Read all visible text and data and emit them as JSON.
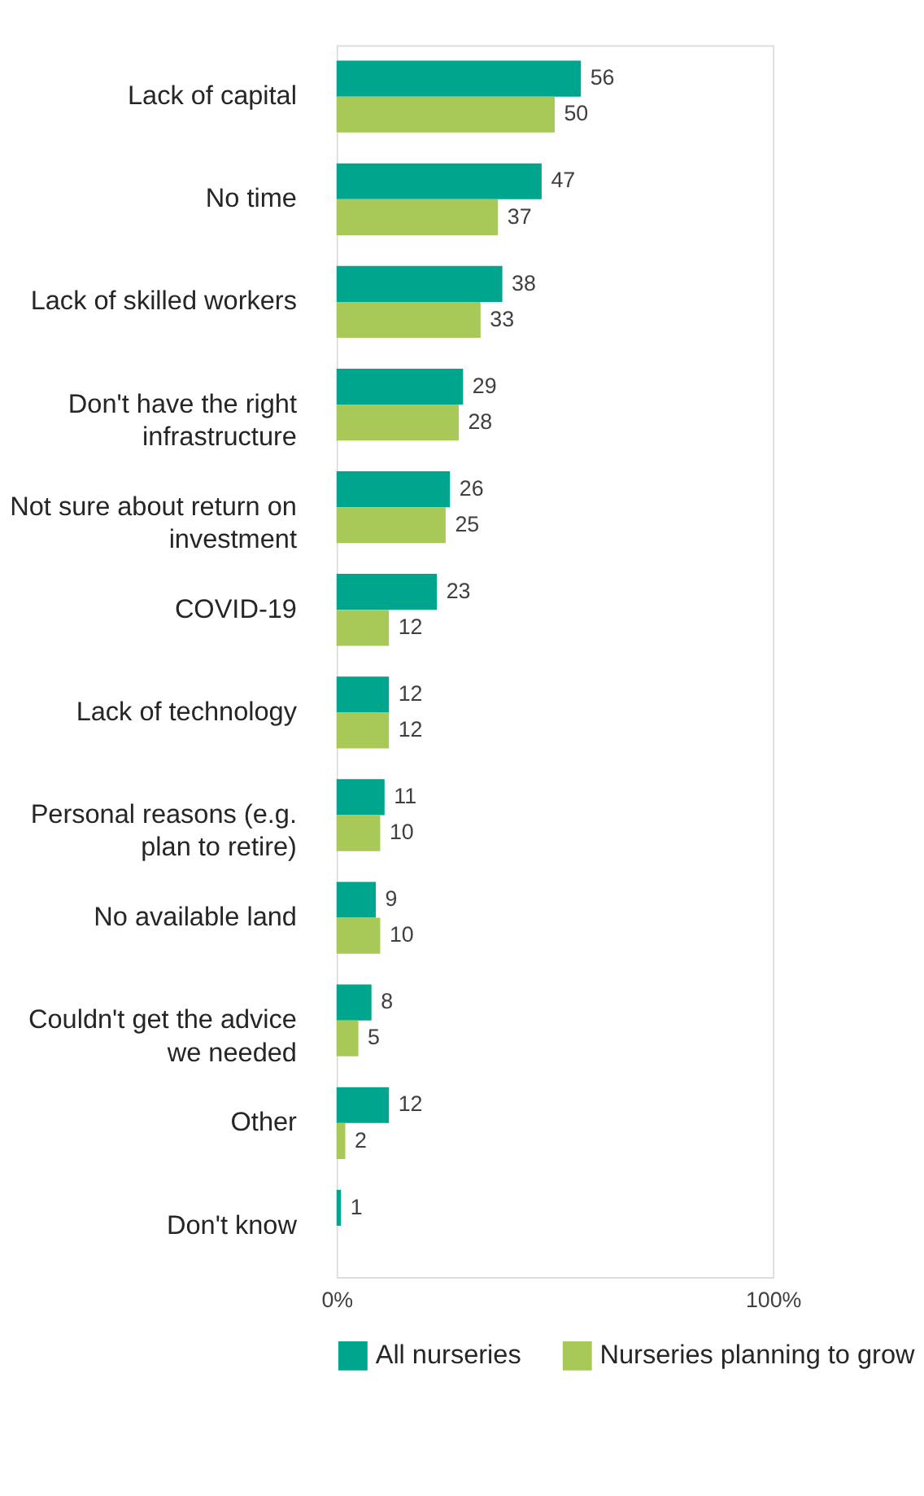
{
  "chart_data": {
    "type": "bar",
    "orientation": "horizontal",
    "categories": [
      "Lack of capital",
      "No time",
      "Lack of skilled workers",
      "Don't have the right infrastructure",
      "Not sure about return on investment",
      "COVID-19",
      "Lack of technology",
      "Personal reasons (e.g. plan to retire)",
      "No available land",
      "Couldn't get the advice we needed",
      "Other",
      "Don't know"
    ],
    "series": [
      {
        "name": "All nurseries",
        "color": "#00a58e",
        "values": [
          56,
          47,
          38,
          29,
          26,
          23,
          12,
          11,
          9,
          8,
          12,
          1
        ]
      },
      {
        "name": "Nurseries planning to grow",
        "color": "#a8c957",
        "values": [
          50,
          37,
          33,
          28,
          25,
          12,
          12,
          10,
          10,
          5,
          2,
          null
        ]
      }
    ],
    "xlim": [
      0,
      100
    ],
    "xticks": [
      {
        "value": 0,
        "label": "0%"
      },
      {
        "value": 100,
        "label": "100%"
      }
    ],
    "data_labels": true,
    "grid": false,
    "legend": "bottom"
  }
}
